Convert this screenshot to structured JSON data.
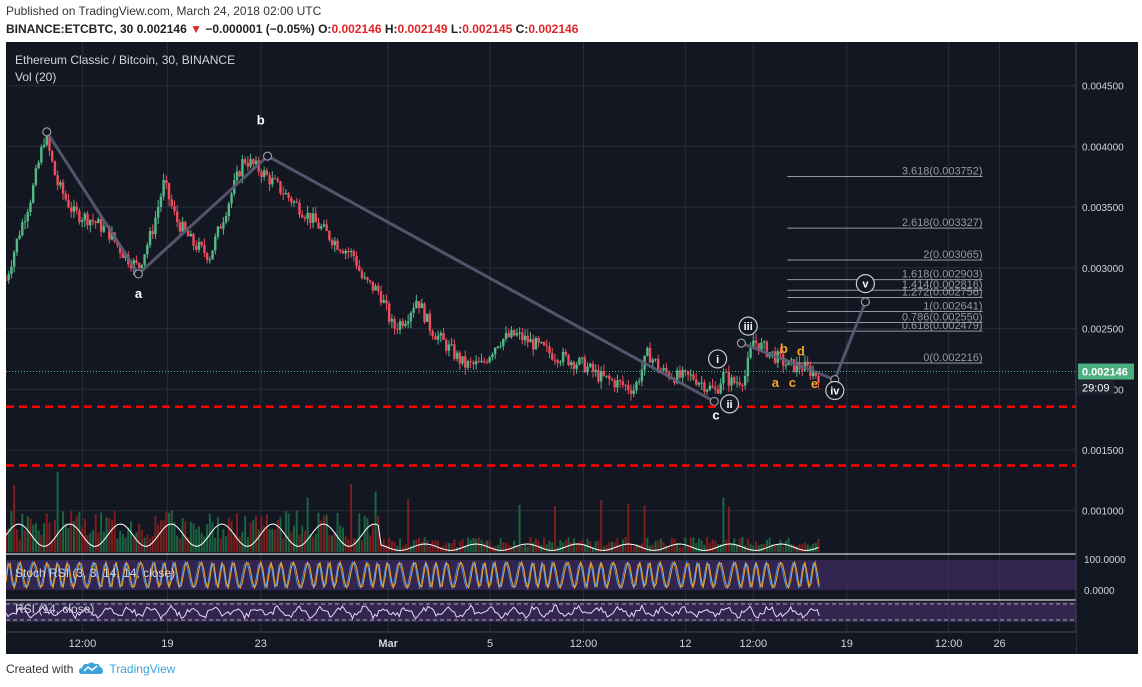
{
  "header": {
    "published": "Published on TradingView.com, March 24, 2018 02:00 UTC",
    "symbol": "BINANCE:ETCBTC, 30",
    "last": "0.002146",
    "change_arrow": "▼",
    "change": "−0.000001 (−0.05%)",
    "o_label": "O:",
    "o_value": "0.002146",
    "h_label": "H:",
    "h_value": "0.002149",
    "l_label": "L:",
    "l_value": "0.002145",
    "c_label": "C:",
    "c_value": "0.002146"
  },
  "pane": {
    "title": "Ethereum Classic / Bitcoin, 30, BINANCE",
    "vol_label": "Vol (20)",
    "stoch_label": "Stoch RSI (3, 3, 14, 14, close)",
    "rsi_label": "RSI (14, close)",
    "stoch_ticks": [
      "100.0000",
      "0.0000"
    ]
  },
  "chart_data": {
    "type": "candlestick",
    "y_ticks": [
      "0.004500",
      "0.004000",
      "0.003500",
      "0.003000",
      "0.002500",
      "0.002000",
      "0.001500",
      "0.001000"
    ],
    "y_tick_values": [
      0.0045,
      0.004,
      0.0035,
      0.003,
      0.0025,
      0.002,
      0.0015,
      0.001
    ],
    "ylim": [
      0.00066,
      0.00486
    ],
    "x_ticks": [
      "12:00",
      "19",
      "23",
      "Mar",
      "5",
      "12:00",
      "12",
      "12:00",
      "19",
      "12:00",
      "26"
    ],
    "price_path": [
      [
        0.0,
        0.0029
      ],
      [
        0.8,
        0.0033
      ],
      [
        1.5,
        0.0036
      ],
      [
        2.3,
        0.0041
      ],
      [
        3.0,
        0.0037
      ],
      [
        4.0,
        0.00345
      ],
      [
        5.0,
        0.0034
      ],
      [
        6.0,
        0.0033
      ],
      [
        7.0,
        0.0031
      ],
      [
        7.8,
        0.003
      ],
      [
        8.6,
        0.0033
      ],
      [
        9.3,
        0.0037
      ],
      [
        10.0,
        0.0034
      ],
      [
        11.0,
        0.0032
      ],
      [
        12.0,
        0.0031
      ],
      [
        13.0,
        0.0035
      ],
      [
        14.0,
        0.0039
      ],
      [
        15.0,
        0.0038
      ],
      [
        16.5,
        0.0036
      ],
      [
        18.0,
        0.0034
      ],
      [
        19.5,
        0.0032
      ],
      [
        20.5,
        0.0031
      ],
      [
        21.0,
        0.0029
      ],
      [
        22.0,
        0.0028
      ],
      [
        22.8,
        0.0025
      ],
      [
        23.6,
        0.0026
      ],
      [
        24.2,
        0.00275
      ],
      [
        25.0,
        0.0025
      ],
      [
        26.0,
        0.00235
      ],
      [
        27.0,
        0.0022
      ],
      [
        28.0,
        0.0022
      ],
      [
        29.0,
        0.0024
      ],
      [
        30.0,
        0.00245
      ],
      [
        31.0,
        0.00238
      ],
      [
        32.0,
        0.0023
      ],
      [
        34.0,
        0.0022
      ],
      [
        35.0,
        0.0021
      ],
      [
        36.0,
        0.00205
      ],
      [
        37.0,
        0.002
      ],
      [
        37.8,
        0.0023
      ],
      [
        38.6,
        0.00215
      ],
      [
        39.5,
        0.0021
      ],
      [
        40.5,
        0.0021
      ],
      [
        41.0,
        0.00205
      ],
      [
        41.8,
        0.00198
      ],
      [
        42.2,
        0.00212
      ],
      [
        42.8,
        0.00205
      ],
      [
        43.5,
        0.0021
      ],
      [
        44.0,
        0.0024
      ],
      [
        45.0,
        0.0023
      ],
      [
        46.0,
        0.0022
      ],
      [
        47.0,
        0.00218
      ],
      [
        48.0,
        0.0021
      ]
    ],
    "wave_labels": [
      {
        "text": "a",
        "t": 7.8,
        "y": 0.00275
      },
      {
        "text": "b",
        "t": 15.0,
        "y": 0.00418
      },
      {
        "text": "c",
        "t": 41.8,
        "y": 0.00175
      }
    ],
    "circle_labels": [
      {
        "text": "i",
        "t": 41.9,
        "y": 0.00225
      },
      {
        "text": "ii",
        "t": 42.6,
        "y": 0.00188
      },
      {
        "text": "iii",
        "t": 43.7,
        "y": 0.00252
      },
      {
        "text": "iv",
        "t": 48.8,
        "y": 0.00199
      },
      {
        "text": "v",
        "t": 50.6,
        "y": 0.00287
      }
    ],
    "orange_labels": [
      {
        "text": "b",
        "t": 45.8,
        "y": 0.0023
      },
      {
        "text": "d",
        "t": 46.8,
        "y": 0.00228
      },
      {
        "text": "a",
        "t": 45.3,
        "y": 0.00202
      },
      {
        "text": "c",
        "t": 46.3,
        "y": 0.00202
      },
      {
        "text": "e",
        "t": 47.6,
        "y": 0.00201
      }
    ],
    "wave_lines": [
      {
        "points": [
          [
            2.4,
            0.00412
          ],
          [
            7.8,
            0.00295
          ],
          [
            15.4,
            0.00392
          ],
          [
            41.7,
            0.0019
          ]
        ]
      },
      {
        "points": [
          [
            43.3,
            0.00238
          ],
          [
            48.8,
            0.00208
          ],
          [
            50.6,
            0.00272
          ]
        ]
      }
    ],
    "fib_levels": [
      {
        "label": "3.618(0.003752)",
        "value": 0.003752
      },
      {
        "label": "2.618(0.003327)",
        "value": 0.003327
      },
      {
        "label": "2(0.003065)",
        "value": 0.003065
      },
      {
        "label": "1.618(0.002903)",
        "value": 0.002903
      },
      {
        "label": "1.414(0.002816)",
        "value": 0.002816
      },
      {
        "label": "1.272(0.002756)",
        "value": 0.002756
      },
      {
        "label": "1(0.002641)",
        "value": 0.002641
      },
      {
        "label": "0.786(0.002550)",
        "value": 0.00255
      },
      {
        "label": "0.618(0.002479)",
        "value": 0.002479
      },
      {
        "label": "0(0.002216)",
        "value": 0.002216
      }
    ],
    "support_lines": [
      {
        "label": "0.001856",
        "value": 0.001856
      },
      {
        "label": "0.001372",
        "value": 0.001372
      }
    ],
    "current_price": {
      "label": "0.002146",
      "value": 0.002146
    },
    "countdown": "29:09",
    "colors": {
      "bg": "#131722",
      "up": "#53b987",
      "down": "#eb4d5c",
      "wave": "#5c5c74",
      "support": "#ff0000",
      "price_badge": "#4caf80",
      "orange": "#f5a623"
    }
  },
  "footer": {
    "created": "Created with",
    "brand": "TradingView",
    "brand_icon": "tradingview-cloud-icon"
  }
}
